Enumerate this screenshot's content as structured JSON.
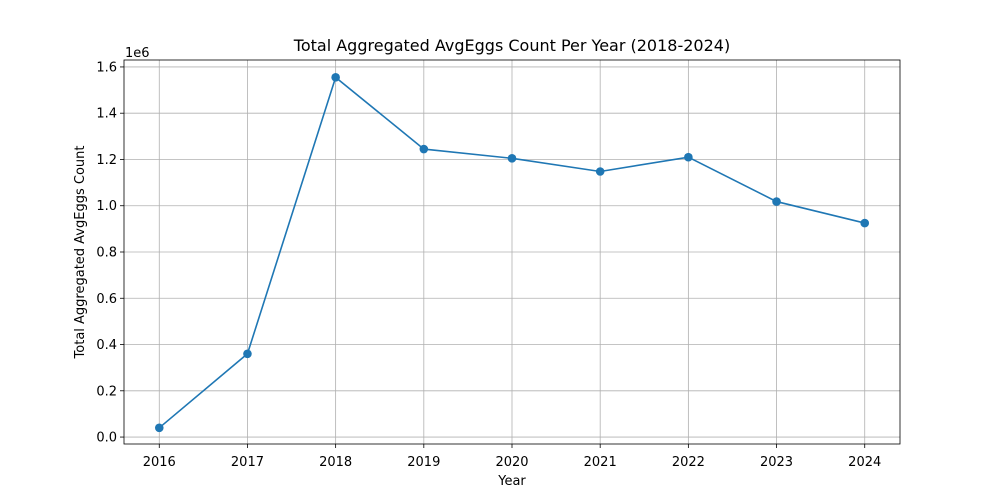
{
  "chart_data": {
    "type": "line",
    "title": "Total Aggregated AvgEggs Count Per Year (2018-2024)",
    "xlabel": "Year",
    "ylabel": "Total Aggregated AvgEggs Count",
    "y_offset_label": "1e6",
    "x": [
      2016,
      2017,
      2018,
      2019,
      2020,
      2021,
      2022,
      2023,
      2024
    ],
    "x_tick_labels": [
      "2016",
      "2017",
      "2018",
      "2019",
      "2020",
      "2021",
      "2022",
      "2023",
      "2024"
    ],
    "series": [
      {
        "values": [
          0.04,
          0.36,
          1.555,
          1.245,
          1.205,
          1.148,
          1.21,
          1.018,
          0.925
        ],
        "color": "#1f77b4",
        "marker": "circle"
      }
    ],
    "y_ticks": [
      0.0,
      0.2,
      0.4,
      0.6,
      0.8,
      1.0,
      1.2,
      1.4,
      1.6
    ],
    "y_tick_labels": [
      "0.0",
      "0.2",
      "0.4",
      "0.6",
      "0.8",
      "1.0",
      "1.2",
      "1.4",
      "1.6"
    ],
    "xlim": [
      2015.6,
      2024.4
    ],
    "ylim": [
      -0.03,
      1.63
    ],
    "grid": true,
    "legend": "none"
  }
}
